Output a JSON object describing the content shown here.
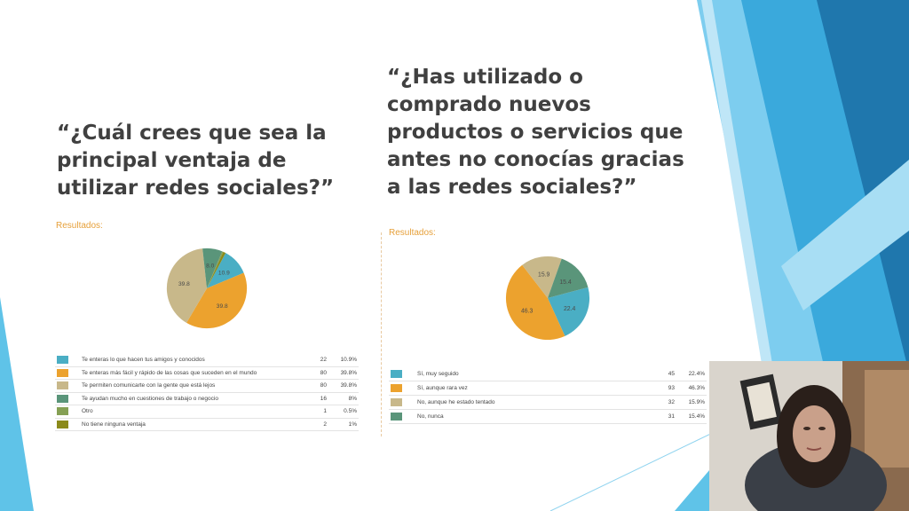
{
  "slide": {
    "question1": "“¿Cuál crees que sea la principal ventaja de utilizar redes sociales?”",
    "question2": "“¿Has utilizado o comprado nuevos productos o servicios que antes no conocías gracias a las redes sociales?”",
    "results_label1": "Resultados:",
    "results_label2": "Resultados:"
  },
  "chart1": {
    "slice_labels": [
      "10.9",
      "39.8",
      "39.8",
      "8.0"
    ],
    "legend": [
      {
        "label": "Te enteras lo que hacen tus amigos y conocidos",
        "count": "22",
        "pct": "10.9%",
        "color": "#4aaec4"
      },
      {
        "label": "Te enteras más fácil y rápido de las cosas que suceden en el mundo",
        "count": "80",
        "pct": "39.8%",
        "color": "#eca22e"
      },
      {
        "label": "Te permiten comunicarte con la gente que está lejos",
        "count": "80",
        "pct": "39.8%",
        "color": "#c8b88a"
      },
      {
        "label": "Te ayudan mucho en cuestiones de trabajo o negocio",
        "count": "16",
        "pct": "8%",
        "color": "#5a957a"
      },
      {
        "label": "Otro",
        "count": "1",
        "pct": "0.5%",
        "color": "#85a054"
      },
      {
        "label": "No tiene ninguna ventaja",
        "count": "2",
        "pct": "1%",
        "color": "#8b8a1a"
      }
    ]
  },
  "chart2": {
    "slice_labels": [
      "22.4",
      "46.3",
      "15.9",
      "15.4"
    ],
    "legend": [
      {
        "label": "Sí, muy seguido",
        "count": "45",
        "pct": "22.4%",
        "color": "#4aaec4"
      },
      {
        "label": "Sí, aunque rara vez",
        "count": "93",
        "pct": "46.3%",
        "color": "#eca22e"
      },
      {
        "label": "No, aunque he estado tentado",
        "count": "32",
        "pct": "15.9%",
        "color": "#c8b88a"
      },
      {
        "label": "No, nunca",
        "count": "31",
        "pct": "15.4%",
        "color": "#5a957a"
      }
    ]
  },
  "chart_data": [
    {
      "type": "pie",
      "categories": [
        "Te enteras lo que hacen tus amigos y conocidos",
        "Te enteras más fácil y rápido de las cosas que suceden en el mundo",
        "Te permiten comunicarte con la gente que está lejos",
        "Te ayudan mucho en cuestiones de trabajo o negocio",
        "Otro",
        "No tiene ninguna ventaja"
      ],
      "values": [
        10.9,
        39.8,
        39.8,
        8.0,
        0.5,
        1.0
      ],
      "colors": [
        "#4aaec4",
        "#eca22e",
        "#c8b88a",
        "#5a957a",
        "#85a054",
        "#8b8a1a"
      ],
      "title": ""
    },
    {
      "type": "pie",
      "categories": [
        "Sí, muy seguido",
        "Sí, aunque rara vez",
        "No, aunque he estado tentado",
        "No, nunca"
      ],
      "values": [
        22.4,
        46.3,
        15.9,
        15.4
      ],
      "colors": [
        "#4aaec4",
        "#eca22e",
        "#c8b88a",
        "#5a957a"
      ],
      "title": ""
    }
  ]
}
